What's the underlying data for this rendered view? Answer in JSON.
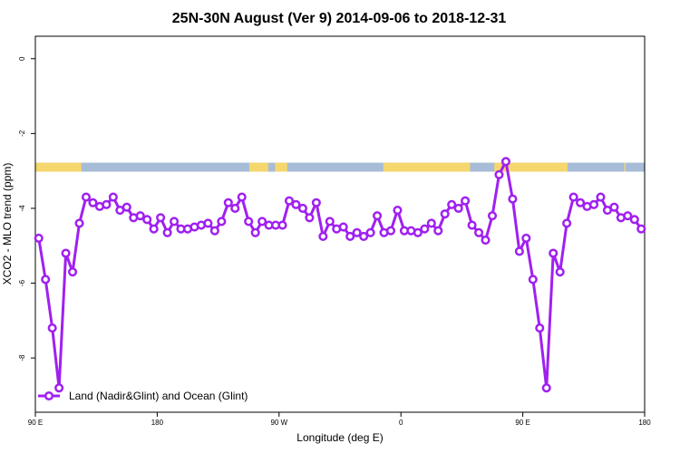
{
  "chart_data": {
    "type": "line",
    "title": "25N-30N August (Ver 9)   2014-09-06 to 2018-12-31",
    "xlabel": "Longitude (deg E)",
    "ylabel": "XCO2 - MLO trend (ppm)",
    "xlim": [
      90,
      540
    ],
    "ylim": [
      -9.45,
      0.6
    ],
    "x_ticks": [
      {
        "value": 90,
        "label": "90 E"
      },
      {
        "value": 180,
        "label": "180"
      },
      {
        "value": 270,
        "label": "90 W"
      },
      {
        "value": 360,
        "label": "0"
      },
      {
        "value": 450,
        "label": "90 E"
      },
      {
        "value": 540,
        "label": "180"
      }
    ],
    "y_ticks": [
      {
        "value": 0,
        "label": "0"
      },
      {
        "value": -2,
        "label": "-2"
      },
      {
        "value": -4,
        "label": "-4"
      },
      {
        "value": -6,
        "label": "-6"
      },
      {
        "value": -8,
        "label": "-8"
      }
    ],
    "land_ocean_band": {
      "y_range": [
        -2.78,
        -3.02
      ],
      "land_color": "#f5d76e",
      "ocean_color": "#a7bcd6",
      "land_segments": [
        [
          90,
          124
        ],
        [
          248,
          262
        ],
        [
          267,
          276
        ],
        [
          347,
          411
        ],
        [
          429,
          483
        ],
        [
          525,
          526
        ]
      ]
    },
    "series": [
      {
        "name": "Land (Nadir&Glint) and Ocean (Glint)",
        "color": "#a020f0",
        "points": [
          [
            92.5,
            -4.8
          ],
          [
            97.5,
            -5.9
          ],
          [
            102.5,
            -7.2
          ],
          [
            107.5,
            -8.8
          ],
          [
            112.5,
            -5.2
          ],
          [
            117.5,
            -5.7
          ],
          [
            122.5,
            -4.4
          ],
          [
            127.5,
            -3.7
          ],
          [
            132.5,
            -3.85
          ],
          [
            137.5,
            -3.95
          ],
          [
            142.5,
            -3.9
          ],
          [
            147.5,
            -3.7
          ],
          [
            152.5,
            -4.05
          ],
          [
            157.5,
            -3.97
          ],
          [
            162.5,
            -4.25
          ],
          [
            167.5,
            -4.2
          ],
          [
            172.5,
            -4.3
          ],
          [
            177.5,
            -4.55
          ],
          [
            182.5,
            -4.25
          ],
          [
            187.5,
            -4.65
          ],
          [
            192.5,
            -4.35
          ],
          [
            197.5,
            -4.55
          ],
          [
            202.5,
            -4.55
          ],
          [
            207.5,
            -4.5
          ],
          [
            212.5,
            -4.45
          ],
          [
            217.5,
            -4.4
          ],
          [
            222.5,
            -4.6
          ],
          [
            227.5,
            -4.35
          ],
          [
            232.5,
            -3.85
          ],
          [
            237.5,
            -4.0
          ],
          [
            242.5,
            -3.7
          ],
          [
            247.5,
            -4.35
          ],
          [
            252.5,
            -4.65
          ],
          [
            257.5,
            -4.35
          ],
          [
            262.5,
            -4.45
          ],
          [
            267.5,
            -4.45
          ],
          [
            272.5,
            -4.45
          ],
          [
            277.5,
            -3.8
          ],
          [
            282.5,
            -3.9
          ],
          [
            287.5,
            -4.0
          ],
          [
            292.5,
            -4.25
          ],
          [
            297.5,
            -3.85
          ],
          [
            302.5,
            -4.75
          ],
          [
            307.5,
            -4.35
          ],
          [
            312.5,
            -4.55
          ],
          [
            317.5,
            -4.5
          ],
          [
            322.5,
            -4.75
          ],
          [
            327.5,
            -4.65
          ],
          [
            332.5,
            -4.75
          ],
          [
            337.5,
            -4.65
          ],
          [
            342.5,
            -4.2
          ],
          [
            347.5,
            -4.65
          ],
          [
            352.5,
            -4.6
          ],
          [
            357.5,
            -4.05
          ],
          [
            362.5,
            -4.6
          ],
          [
            367.5,
            -4.6
          ],
          [
            372.5,
            -4.65
          ],
          [
            377.5,
            -4.55
          ],
          [
            382.5,
            -4.4
          ],
          [
            387.5,
            -4.6
          ],
          [
            392.5,
            -4.15
          ],
          [
            397.5,
            -3.9
          ],
          [
            402.5,
            -4.0
          ],
          [
            407.5,
            -3.8
          ],
          [
            412.5,
            -4.45
          ],
          [
            417.5,
            -4.65
          ],
          [
            422.5,
            -4.85
          ],
          [
            427.5,
            -4.2
          ],
          [
            432.5,
            -3.1
          ],
          [
            437.5,
            -2.75
          ],
          [
            442.5,
            -3.75
          ],
          [
            447.5,
            -5.15
          ],
          [
            452.5,
            -4.8
          ],
          [
            457.5,
            -5.9
          ],
          [
            462.5,
            -7.2
          ],
          [
            467.5,
            -8.8
          ],
          [
            472.5,
            -5.2
          ],
          [
            477.5,
            -5.7
          ],
          [
            482.5,
            -4.4
          ],
          [
            487.5,
            -3.7
          ],
          [
            492.5,
            -3.85
          ],
          [
            497.5,
            -3.95
          ],
          [
            502.5,
            -3.9
          ],
          [
            507.5,
            -3.7
          ],
          [
            512.5,
            -4.05
          ],
          [
            517.5,
            -3.97
          ],
          [
            522.5,
            -4.25
          ],
          [
            527.5,
            -4.2
          ],
          [
            532.5,
            -4.3
          ],
          [
            537.5,
            -4.55
          ]
        ]
      }
    ],
    "legend": {
      "position": "bottom-left",
      "entries": [
        "Land (Nadir&Glint) and Ocean (Glint)"
      ]
    },
    "grid": false
  }
}
